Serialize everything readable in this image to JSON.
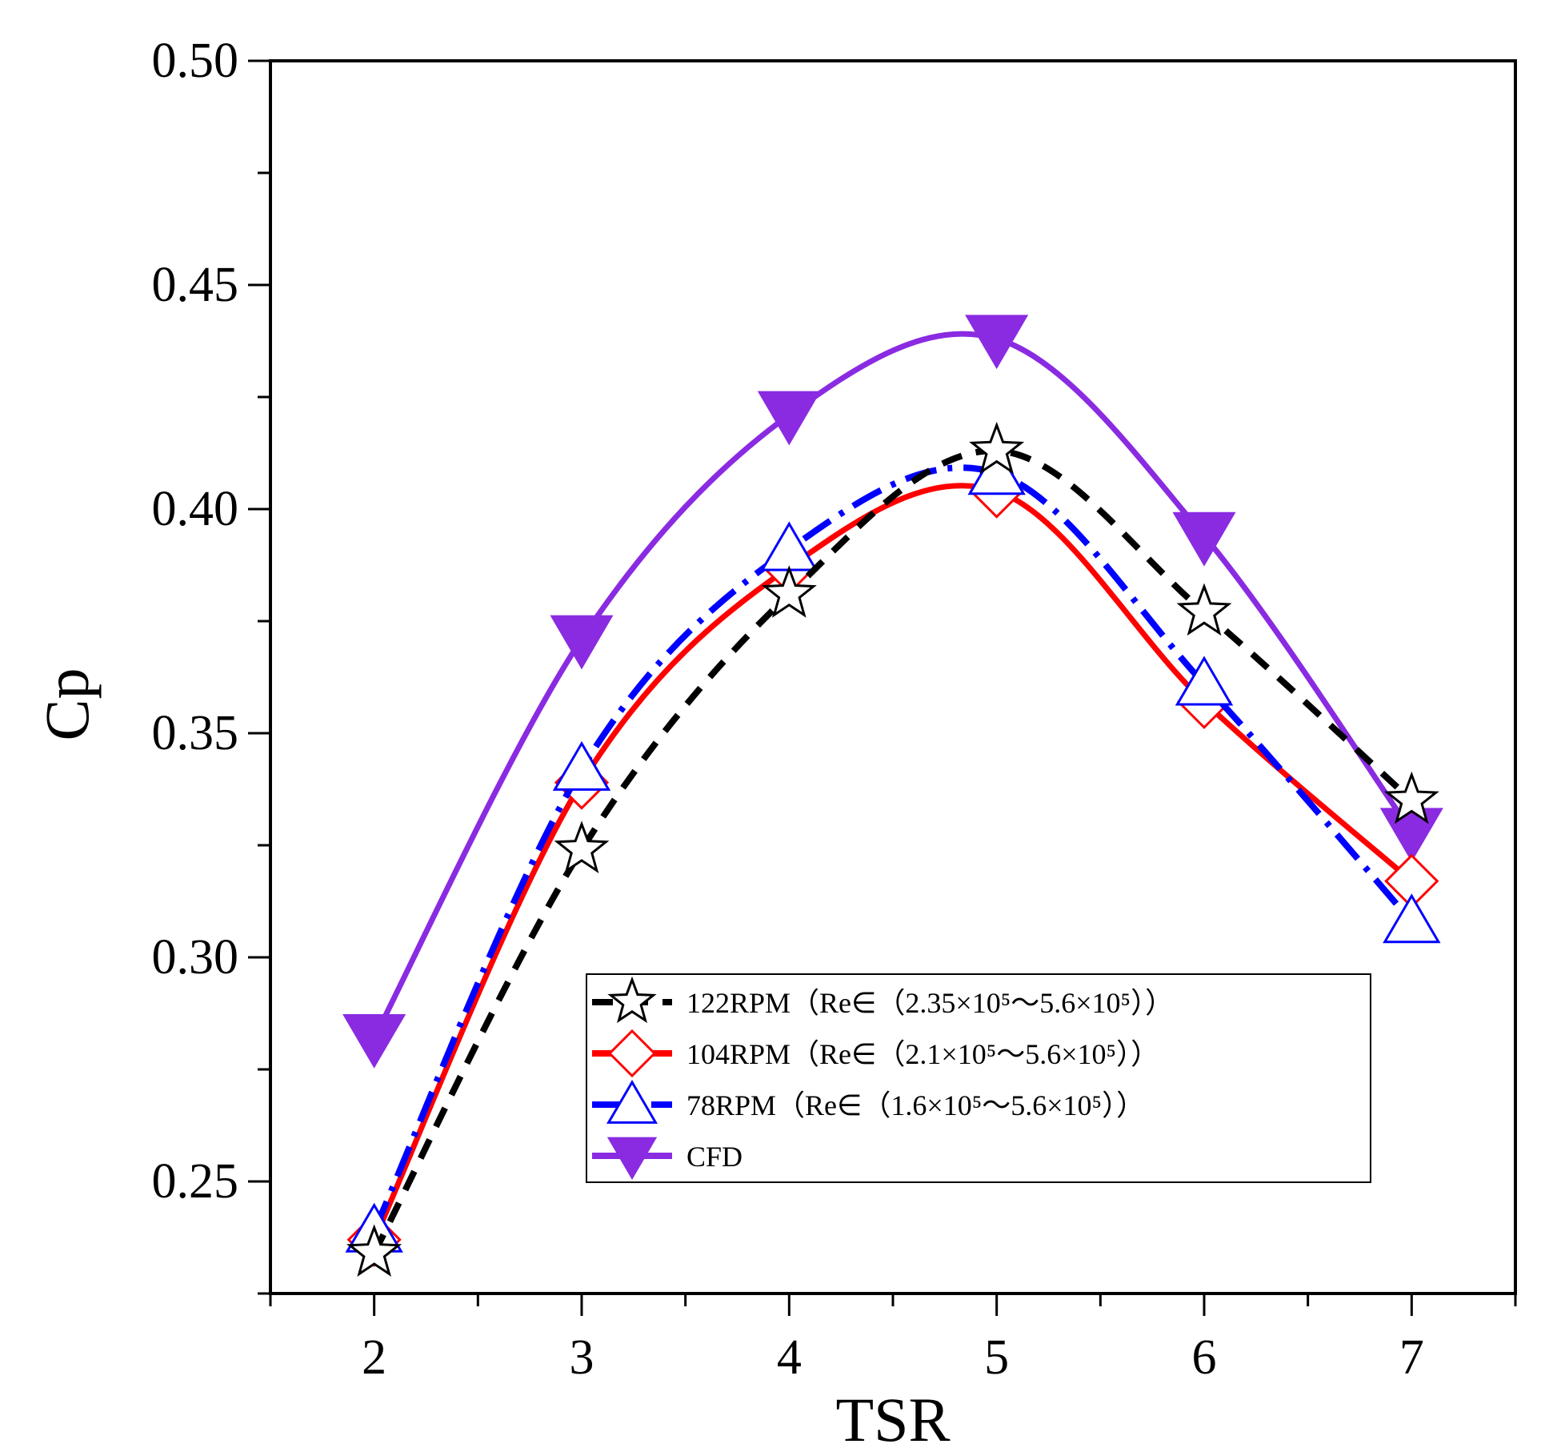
{
  "chart_data": {
    "type": "line",
    "title": "",
    "xlabel": "TSR",
    "ylabel": "Cp",
    "xlim": [
      1.5,
      7.5
    ],
    "ylim": [
      0.225,
      0.5
    ],
    "x_ticks": [
      2,
      3,
      4,
      5,
      6,
      7
    ],
    "x_tick_labels": [
      "2",
      "3",
      "4",
      "5",
      "6",
      "7"
    ],
    "y_ticks": [
      0.25,
      0.3,
      0.35,
      0.4,
      0.45,
      0.5
    ],
    "y_tick_labels": [
      "0.25",
      "0.30",
      "0.35",
      "0.40",
      "0.45",
      "0.50"
    ],
    "x": [
      2,
      3,
      4,
      5,
      6,
      7
    ],
    "legend_position": "bottom-center",
    "series": [
      {
        "name": "122RPM",
        "legend_label": "122RPM（Re∈（2.35×10⁵～5.6×10⁵））",
        "values": [
          0.234,
          0.324,
          0.381,
          0.413,
          0.377,
          0.335
        ],
        "marker": "star",
        "line_style": "dashed",
        "color": "#000000"
      },
      {
        "name": "104RPM",
        "legend_label": "104RPM（Re∈（2.1×10⁵～5.6×10⁵））",
        "values": [
          0.237,
          0.339,
          0.387,
          0.404,
          0.357,
          0.317
        ],
        "marker": "diamond",
        "line_style": "solid",
        "color": "#ff0000"
      },
      {
        "name": "78RPM",
        "legend_label": "78RPM（Re∈（1.6×10⁵～5.6×10⁵））",
        "values": [
          0.239,
          0.342,
          0.391,
          0.408,
          0.361,
          0.308
        ],
        "marker": "triangle-up",
        "line_style": "dash-dot",
        "color": "#0000ff"
      },
      {
        "name": "CFD",
        "legend_label": "CFD",
        "values": [
          0.282,
          0.371,
          0.421,
          0.438,
          0.394,
          0.328
        ],
        "marker": "triangle-down-filled",
        "line_style": "solid",
        "color": "#8a2be2"
      }
    ]
  }
}
